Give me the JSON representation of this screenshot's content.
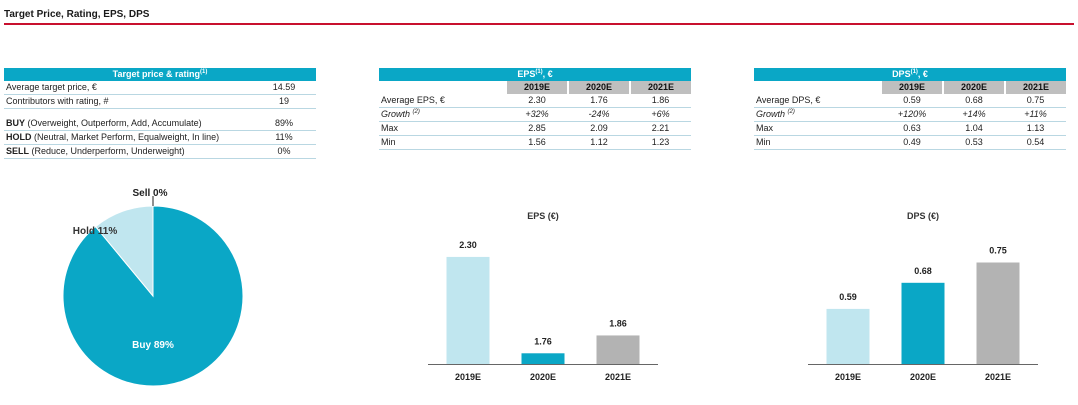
{
  "page": {
    "title": "Target Price, Rating, EPS, DPS"
  },
  "target_table": {
    "header": "Target price & rating",
    "header_sup": "(1)",
    "rows": [
      {
        "label": "Average target price, €",
        "value": "14.59"
      },
      {
        "label": "Contributors with rating, #",
        "value": "19"
      }
    ],
    "ratings": [
      {
        "bold": "BUY",
        "rest": " (Overweight, Outperform, Add, Accumulate)",
        "value": "89%"
      },
      {
        "bold": "HOLD",
        "rest": " (Neutral, Market Perform, Equalweight, In line)",
        "value": "11%"
      },
      {
        "bold": "SELL",
        "rest": " (Reduce, Underperform, Underweight)",
        "value": "0%"
      }
    ]
  },
  "eps_table": {
    "header": "EPS",
    "header_sup": "(1)",
    "header_suffix": ", €",
    "years": [
      "2019E",
      "2020E",
      "2021E"
    ],
    "rows": [
      {
        "label": "Average EPS, €",
        "values": [
          "2.30",
          "1.76",
          "1.86"
        ]
      },
      {
        "label": "Growth",
        "sup": "(2)",
        "values": [
          "+32%",
          "-24%",
          "+6%"
        ]
      },
      {
        "label": "Max",
        "values": [
          "2.85",
          "2.09",
          "2.21"
        ]
      },
      {
        "label": "Min",
        "values": [
          "1.56",
          "1.12",
          "1.23"
        ]
      }
    ]
  },
  "dps_table": {
    "header": "DPS",
    "header_sup": "(1)",
    "header_suffix": ", €",
    "years": [
      "2019E",
      "2020E",
      "2021E"
    ],
    "rows": [
      {
        "label": "Average DPS, €",
        "values": [
          "0.59",
          "0.68",
          "0.75"
        ]
      },
      {
        "label": "Growth",
        "sup": "(2)",
        "values": [
          "+120%",
          "+14%",
          "+11%"
        ]
      },
      {
        "label": "Max",
        "values": [
          "0.63",
          "1.04",
          "1.13"
        ]
      },
      {
        "label": "Min",
        "values": [
          "0.49",
          "0.53",
          "0.54"
        ]
      }
    ]
  },
  "chart_data": [
    {
      "type": "pie",
      "categories": [
        "Buy",
        "Hold",
        "Sell"
      ],
      "values": [
        89,
        11,
        0
      ],
      "labels": [
        "Buy 89%",
        "Hold 11%",
        "Sell 0%"
      ],
      "colors": [
        "#0aa7c6",
        "#c0e6ef",
        "#0aa7c6"
      ]
    },
    {
      "type": "bar",
      "title": "EPS (€)",
      "categories": [
        "2019E",
        "2020E",
        "2021E"
      ],
      "values": [
        2.3,
        1.76,
        1.86
      ],
      "value_labels": [
        "2.30",
        "1.76",
        "1.86"
      ],
      "colors": [
        "#c0e6ef",
        "#0aa7c6",
        "#b3b3b3"
      ],
      "ylim": [
        1.7,
        2.35
      ]
    },
    {
      "type": "bar",
      "title": "DPS (€)",
      "categories": [
        "2019E",
        "2020E",
        "2021E"
      ],
      "values": [
        0.59,
        0.68,
        0.75
      ],
      "value_labels": [
        "0.59",
        "0.68",
        "0.75"
      ],
      "colors": [
        "#c0e6ef",
        "#0aa7c6",
        "#b3b3b3"
      ],
      "ylim": [
        0.4,
        0.8
      ]
    }
  ]
}
